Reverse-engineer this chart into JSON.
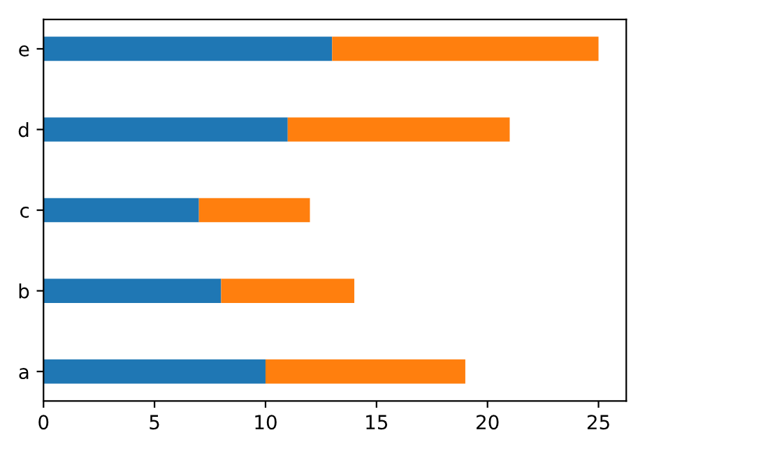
{
  "chart_data": {
    "type": "bar",
    "orientation": "horizontal",
    "stacked": true,
    "categories": [
      "e",
      "d",
      "c",
      "b",
      "a"
    ],
    "series": [
      {
        "color": "#1f77b4",
        "values": [
          13,
          11,
          7,
          8,
          10
        ]
      },
      {
        "color": "#ff7f0e",
        "values": [
          12,
          10,
          5,
          6,
          9
        ]
      }
    ],
    "xlim": [
      0,
      26.25
    ],
    "xticks": [
      0,
      5,
      10,
      15,
      20,
      25
    ],
    "grid": false,
    "legend": false
  }
}
